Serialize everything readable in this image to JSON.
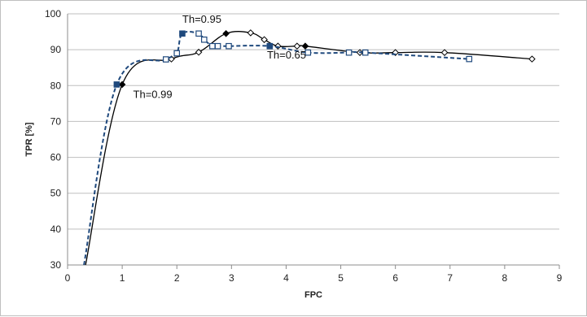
{
  "chart_data": {
    "type": "line",
    "xlabel": "FPC",
    "ylabel": "TPR [%]",
    "xlim": [
      0,
      9
    ],
    "ylim": [
      30,
      100
    ],
    "x_ticks": [
      "0",
      "1",
      "2",
      "3",
      "4",
      "5",
      "6",
      "7",
      "8",
      "9"
    ],
    "y_ticks": [
      "30",
      "40",
      "50",
      "60",
      "70",
      "80",
      "90",
      "100"
    ],
    "grid": "horizontal",
    "legend": "none",
    "series": [
      {
        "style": "solid",
        "color": "#000000",
        "marker": "diamond",
        "points": [
          {
            "x": 0.33,
            "y": 30,
            "marker": "none"
          },
          {
            "x": 1.0,
            "y": 80.3,
            "marker": "filled"
          },
          {
            "x": 1.9,
            "y": 87.4,
            "marker": "open"
          },
          {
            "x": 2.4,
            "y": 89.3,
            "marker": "open"
          },
          {
            "x": 2.9,
            "y": 94.5,
            "marker": "filled"
          },
          {
            "x": 3.35,
            "y": 94.7,
            "marker": "open"
          },
          {
            "x": 3.6,
            "y": 92.8,
            "marker": "open"
          },
          {
            "x": 3.85,
            "y": 91.0,
            "marker": "open"
          },
          {
            "x": 4.2,
            "y": 91.0,
            "marker": "open"
          },
          {
            "x": 4.35,
            "y": 91.0,
            "marker": "filled"
          },
          {
            "x": 5.35,
            "y": 89.2,
            "marker": "open"
          },
          {
            "x": 6.0,
            "y": 89.2,
            "marker": "open"
          },
          {
            "x": 6.9,
            "y": 89.2,
            "marker": "open"
          },
          {
            "x": 8.5,
            "y": 87.4,
            "marker": "open"
          }
        ]
      },
      {
        "style": "dashed",
        "color": "#1f497d",
        "marker": "square",
        "points": [
          {
            "x": 0.3,
            "y": 30,
            "marker": "none"
          },
          {
            "x": 0.9,
            "y": 80.3,
            "marker": "filled"
          },
          {
            "x": 1.8,
            "y": 87.3,
            "marker": "open"
          },
          {
            "x": 2.0,
            "y": 89.0,
            "marker": "open"
          },
          {
            "x": 2.1,
            "y": 94.5,
            "marker": "filled"
          },
          {
            "x": 2.4,
            "y": 94.5,
            "marker": "open"
          },
          {
            "x": 2.5,
            "y": 92.8,
            "marker": "open"
          },
          {
            "x": 2.65,
            "y": 91.0,
            "marker": "open"
          },
          {
            "x": 2.75,
            "y": 91.0,
            "marker": "open"
          },
          {
            "x": 2.95,
            "y": 91.0,
            "marker": "open"
          },
          {
            "x": 3.7,
            "y": 91.0,
            "marker": "filled"
          },
          {
            "x": 4.4,
            "y": 89.2,
            "marker": "open"
          },
          {
            "x": 5.15,
            "y": 89.2,
            "marker": "open"
          },
          {
            "x": 5.45,
            "y": 89.2,
            "marker": "open"
          },
          {
            "x": 7.35,
            "y": 87.4,
            "marker": "open"
          }
        ]
      }
    ],
    "annotations": [
      {
        "text": "Th=0.95",
        "x": 2.1,
        "y": 97.5
      },
      {
        "text": "Th=0.65",
        "x": 3.65,
        "y": 87.5
      },
      {
        "text": "Th=0.99",
        "x": 1.2,
        "y": 76.5
      }
    ]
  }
}
